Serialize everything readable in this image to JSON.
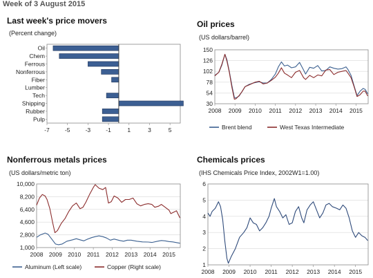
{
  "header": "Week of 3 August 2015",
  "colors": {
    "navy": "#2e4a7a",
    "navy_fill": "#3c5f93",
    "red": "#8b2c2c",
    "blue_line": "#3a5f8f"
  },
  "panels": {
    "movers": {
      "title": "Last week's price movers",
      "subtitle": "(Percent change)"
    },
    "oil": {
      "title": "Oil prices",
      "subtitle": "(US dollars/barrel)"
    },
    "nonferrous": {
      "title": "Nonferrous metals prices",
      "subtitle": "(US dollars/metric ton)"
    },
    "chemicals": {
      "title": "Chemicals prices",
      "subtitle": "(IHS Chemicals Price Index, 2002W1=1.00)"
    }
  },
  "chart_data": [
    {
      "id": "movers",
      "type": "bar",
      "orientation": "horizontal",
      "categories": [
        "Oil",
        "Chem",
        "Ferrous",
        "Nonferrous",
        "Fiber",
        "Lumber",
        "Tech",
        "Shipping",
        "Rubber",
        "Pulp"
      ],
      "values": [
        -6.4,
        -5.8,
        -3.0,
        -1.7,
        -0.7,
        0.0,
        -1.2,
        6.3,
        -1.6,
        -1.6
      ],
      "xlim": [
        -7,
        6
      ],
      "xticks": [
        -7,
        -5,
        -3,
        -1,
        1,
        3,
        5
      ],
      "xtick_labels": [
        "-7",
        "-5",
        "-3",
        "-1",
        "1",
        "3",
        "5"
      ],
      "color": "#3c5f93"
    },
    {
      "id": "oil",
      "type": "line",
      "x_range": [
        2008,
        2015.6
      ],
      "xtick_labels": [
        "2008",
        "2009",
        "2010",
        "2011",
        "2012",
        "2013",
        "2014",
        "2015"
      ],
      "ylim": [
        30,
        150
      ],
      "yticks": [
        30,
        54,
        78,
        102,
        126,
        150
      ],
      "series": [
        {
          "name": "Brent blend",
          "color": "#3a5f8f",
          "points": [
            [
              2008,
              93
            ],
            [
              2008.2,
              100
            ],
            [
              2008.35,
              116
            ],
            [
              2008.5,
              140
            ],
            [
              2008.6,
              128
            ],
            [
              2008.72,
              102
            ],
            [
              2008.85,
              70
            ],
            [
              2008.97,
              44
            ],
            [
              2009.05,
              43
            ],
            [
              2009.2,
              47
            ],
            [
              2009.35,
              57
            ],
            [
              2009.5,
              68
            ],
            [
              2009.7,
              73
            ],
            [
              2009.9,
              76
            ],
            [
              2010,
              77
            ],
            [
              2010.2,
              79
            ],
            [
              2010.4,
              76
            ],
            [
              2010.6,
              76
            ],
            [
              2010.8,
              84
            ],
            [
              2011,
              96
            ],
            [
              2011.15,
              112
            ],
            [
              2011.3,
              123
            ],
            [
              2011.45,
              114
            ],
            [
              2011.6,
              116
            ],
            [
              2011.8,
              110
            ],
            [
              2012,
              112
            ],
            [
              2012.2,
              122
            ],
            [
              2012.4,
              105
            ],
            [
              2012.5,
              96
            ],
            [
              2012.7,
              111
            ],
            [
              2012.9,
              109
            ],
            [
              2013.1,
              115
            ],
            [
              2013.3,
              103
            ],
            [
              2013.5,
              104
            ],
            [
              2013.7,
              112
            ],
            [
              2013.9,
              109
            ],
            [
              2014.1,
              107
            ],
            [
              2014.3,
              108
            ],
            [
              2014.5,
              112
            ],
            [
              2014.6,
              106
            ],
            [
              2014.75,
              93
            ],
            [
              2014.9,
              70
            ],
            [
              2015.05,
              48
            ],
            [
              2015.2,
              58
            ],
            [
              2015.35,
              64
            ],
            [
              2015.45,
              62
            ],
            [
              2015.58,
              52
            ]
          ]
        },
        {
          "name": "West Texas Intermediate",
          "color": "#8b2c2c",
          "points": [
            [
              2008,
              92
            ],
            [
              2008.2,
              100
            ],
            [
              2008.35,
              118
            ],
            [
              2008.5,
              140
            ],
            [
              2008.6,
              125
            ],
            [
              2008.72,
              100
            ],
            [
              2008.85,
              66
            ],
            [
              2008.97,
              40
            ],
            [
              2009.05,
              41
            ],
            [
              2009.2,
              48
            ],
            [
              2009.35,
              57
            ],
            [
              2009.5,
              68
            ],
            [
              2009.7,
              72
            ],
            [
              2009.9,
              76
            ],
            [
              2010,
              78
            ],
            [
              2010.2,
              80
            ],
            [
              2010.4,
              74
            ],
            [
              2010.6,
              76
            ],
            [
              2010.8,
              82
            ],
            [
              2011,
              89
            ],
            [
              2011.15,
              98
            ],
            [
              2011.3,
              110
            ],
            [
              2011.45,
              98
            ],
            [
              2011.6,
              94
            ],
            [
              2011.8,
              88
            ],
            [
              2012,
              100
            ],
            [
              2012.2,
              104
            ],
            [
              2012.4,
              88
            ],
            [
              2012.5,
              84
            ],
            [
              2012.7,
              93
            ],
            [
              2012.9,
              88
            ],
            [
              2013.1,
              94
            ],
            [
              2013.3,
              92
            ],
            [
              2013.5,
              105
            ],
            [
              2013.7,
              106
            ],
            [
              2013.9,
              95
            ],
            [
              2014.1,
              100
            ],
            [
              2014.3,
              102
            ],
            [
              2014.5,
              104
            ],
            [
              2014.6,
              98
            ],
            [
              2014.75,
              88
            ],
            [
              2014.9,
              68
            ],
            [
              2015.05,
              46
            ],
            [
              2015.2,
              50
            ],
            [
              2015.35,
              58
            ],
            [
              2015.45,
              58
            ],
            [
              2015.58,
              47
            ]
          ]
        }
      ],
      "legend": "bottom"
    },
    {
      "id": "nonferrous",
      "type": "line",
      "x_range": [
        2008,
        2015.6
      ],
      "xtick_labels": [
        "2008",
        "2009",
        "2010",
        "2011",
        "2012",
        "2013",
        "2014",
        "2015"
      ],
      "ylim": [
        1000,
        10000
      ],
      "yticks": [
        1000,
        2800,
        4600,
        6400,
        8200,
        10000
      ],
      "ytick_labels": [
        "1,000",
        "2,800",
        "4,600",
        "6,400",
        "8,200",
        "10,000"
      ],
      "series": [
        {
          "name": "Aluminum (Left scale)",
          "color": "#3a5f8f",
          "points": [
            [
              2008,
              2450
            ],
            [
              2008.2,
              2800
            ],
            [
              2008.45,
              3050
            ],
            [
              2008.6,
              2900
            ],
            [
              2008.8,
              2200
            ],
            [
              2009,
              1500
            ],
            [
              2009.15,
              1400
            ],
            [
              2009.35,
              1500
            ],
            [
              2009.6,
              1900
            ],
            [
              2009.9,
              2100
            ],
            [
              2010.1,
              2250
            ],
            [
              2010.3,
              2100
            ],
            [
              2010.5,
              1950
            ],
            [
              2010.7,
              2200
            ],
            [
              2010.9,
              2400
            ],
            [
              2011.1,
              2550
            ],
            [
              2011.3,
              2650
            ],
            [
              2011.5,
              2550
            ],
            [
              2011.7,
              2350
            ],
            [
              2011.9,
              2050
            ],
            [
              2012.1,
              2200
            ],
            [
              2012.4,
              2000
            ],
            [
              2012.6,
              1900
            ],
            [
              2012.8,
              2050
            ],
            [
              2013,
              2050
            ],
            [
              2013.3,
              1900
            ],
            [
              2013.6,
              1800
            ],
            [
              2013.9,
              1780
            ],
            [
              2014.1,
              1720
            ],
            [
              2014.4,
              1900
            ],
            [
              2014.6,
              2000
            ],
            [
              2014.8,
              1950
            ],
            [
              2015,
              1850
            ],
            [
              2015.2,
              1800
            ],
            [
              2015.4,
              1700
            ],
            [
              2015.58,
              1620
            ]
          ]
        },
        {
          "name": "Copper (Right scale)",
          "color": "#8b2c2c",
          "points": [
            [
              2008,
              7000
            ],
            [
              2008.15,
              8000
            ],
            [
              2008.3,
              8500
            ],
            [
              2008.45,
              8300
            ],
            [
              2008.55,
              7800
            ],
            [
              2008.7,
              6500
            ],
            [
              2008.85,
              4500
            ],
            [
              2008.97,
              3100
            ],
            [
              2009.1,
              3400
            ],
            [
              2009.3,
              4400
            ],
            [
              2009.5,
              5100
            ],
            [
              2009.7,
              6100
            ],
            [
              2009.9,
              6900
            ],
            [
              2010.1,
              7300
            ],
            [
              2010.3,
              6500
            ],
            [
              2010.45,
              6700
            ],
            [
              2010.6,
              7400
            ],
            [
              2010.8,
              8500
            ],
            [
              2011,
              9500
            ],
            [
              2011.1,
              9900
            ],
            [
              2011.3,
              9400
            ],
            [
              2011.5,
              9200
            ],
            [
              2011.65,
              9500
            ],
            [
              2011.8,
              7300
            ],
            [
              2011.95,
              7500
            ],
            [
              2012.1,
              8300
            ],
            [
              2012.3,
              8000
            ],
            [
              2012.5,
              7400
            ],
            [
              2012.7,
              7800
            ],
            [
              2012.9,
              7800
            ],
            [
              2013.1,
              8000
            ],
            [
              2013.3,
              7200
            ],
            [
              2013.5,
              6900
            ],
            [
              2013.7,
              7100
            ],
            [
              2013.9,
              7200
            ],
            [
              2014.1,
              7100
            ],
            [
              2014.25,
              6700
            ],
            [
              2014.45,
              6850
            ],
            [
              2014.6,
              7100
            ],
            [
              2014.8,
              6700
            ],
            [
              2015,
              6300
            ],
            [
              2015.1,
              5800
            ],
            [
              2015.25,
              6000
            ],
            [
              2015.4,
              6200
            ],
            [
              2015.58,
              5200
            ]
          ]
        }
      ],
      "legend": "bottom"
    },
    {
      "id": "chemicals",
      "type": "line",
      "x_range": [
        2008,
        2015.6
      ],
      "xtick_labels": [
        "2008",
        "2009",
        "2010",
        "2011",
        "2012",
        "2013",
        "2014",
        "2015"
      ],
      "ylim": [
        1,
        6
      ],
      "yticks": [
        1,
        2,
        3,
        4,
        5,
        6
      ],
      "series": [
        {
          "name": "IHS Chemicals Price Index",
          "color": "#2e4a7a",
          "points": [
            [
              2008,
              4.2
            ],
            [
              2008.1,
              4.0
            ],
            [
              2008.2,
              4.3
            ],
            [
              2008.35,
              4.5
            ],
            [
              2008.5,
              4.9
            ],
            [
              2008.6,
              4.6
            ],
            [
              2008.7,
              3.8
            ],
            [
              2008.8,
              2.5
            ],
            [
              2008.9,
              1.4
            ],
            [
              2008.97,
              1.1
            ],
            [
              2009.1,
              1.5
            ],
            [
              2009.3,
              2.0
            ],
            [
              2009.5,
              2.7
            ],
            [
              2009.7,
              3.0
            ],
            [
              2009.85,
              3.3
            ],
            [
              2010,
              3.9
            ],
            [
              2010.15,
              3.6
            ],
            [
              2010.3,
              3.5
            ],
            [
              2010.45,
              3.1
            ],
            [
              2010.6,
              3.3
            ],
            [
              2010.75,
              3.6
            ],
            [
              2010.9,
              4.0
            ],
            [
              2011,
              4.5
            ],
            [
              2011.15,
              5.1
            ],
            [
              2011.25,
              4.6
            ],
            [
              2011.4,
              4.3
            ],
            [
              2011.55,
              3.9
            ],
            [
              2011.7,
              4.1
            ],
            [
              2011.85,
              3.5
            ],
            [
              2012,
              3.6
            ],
            [
              2012.15,
              4.3
            ],
            [
              2012.3,
              4.6
            ],
            [
              2012.45,
              3.9
            ],
            [
              2012.55,
              3.6
            ],
            [
              2012.7,
              4.4
            ],
            [
              2012.85,
              4.7
            ],
            [
              2013,
              4.9
            ],
            [
              2013.15,
              4.4
            ],
            [
              2013.3,
              3.9
            ],
            [
              2013.45,
              4.2
            ],
            [
              2013.6,
              4.7
            ],
            [
              2013.75,
              4.8
            ],
            [
              2013.9,
              4.6
            ],
            [
              2014.1,
              4.5
            ],
            [
              2014.25,
              4.4
            ],
            [
              2014.4,
              4.7
            ],
            [
              2014.55,
              4.5
            ],
            [
              2014.7,
              3.9
            ],
            [
              2014.85,
              3.1
            ],
            [
              2015,
              2.7
            ],
            [
              2015.15,
              3.0
            ],
            [
              2015.3,
              2.8
            ],
            [
              2015.45,
              2.7
            ],
            [
              2015.58,
              2.5
            ]
          ]
        }
      ]
    }
  ]
}
